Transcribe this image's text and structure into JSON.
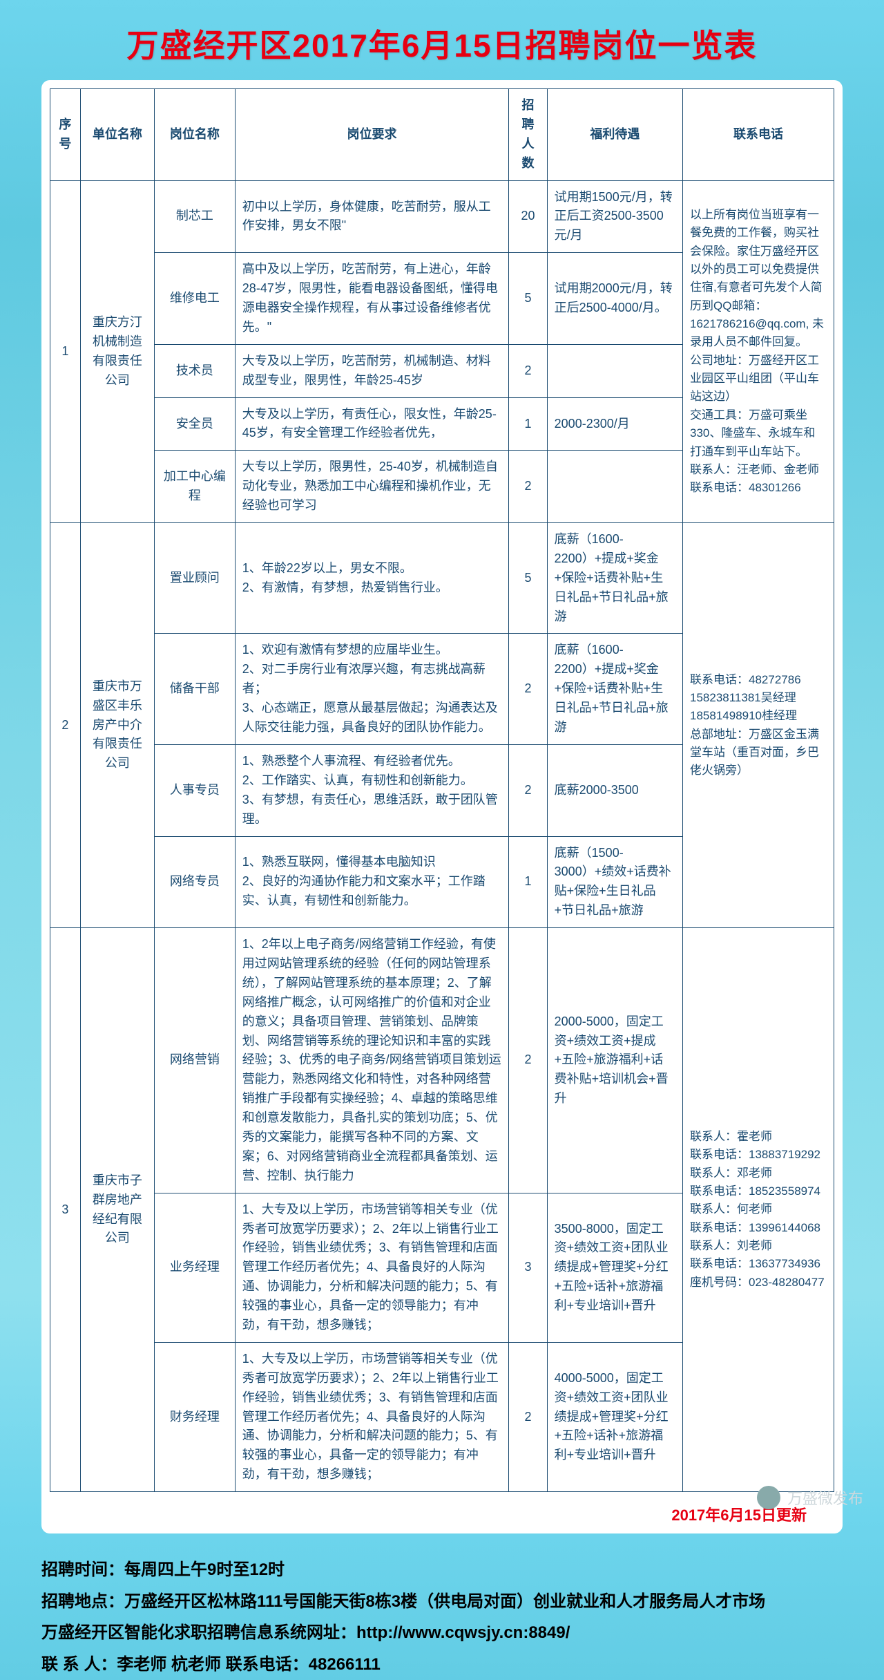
{
  "title": "万盛经开区2017年6月15日招聘岗位一览表",
  "headers": {
    "seq": "序号",
    "company": "单位名称",
    "position": "岗位名称",
    "req": "岗位要求",
    "num": "招聘人数",
    "benefit": "福利待遇",
    "contact": "联系电话"
  },
  "companies": [
    {
      "seq": "1",
      "name": "重庆方汀机械制造有限责任公司",
      "contact": "以上所有岗位当班享有一餐免费的工作餐，购买社会保险。家住万盛经开区以外的员工可以免费提供住宿,有意者可先发个人简历到QQ邮箱：1621786216@qq.com, 未录用人员不邮件回复。\n公司地址：万盛经开区工业园区平山组团（平山车站这边）\n交通工具：万盛可乘坐330、隆盛车、永城车和打通车到平山车站下。\n联系人：汪老师、金老师     联系电话：48301266",
      "positions": [
        {
          "name": "制芯工",
          "req": "初中以上学历，身体健康，吃苦耐劳，服从工作安排，男女不限\"",
          "num": "20",
          "benefit": "试用期1500元/月，转正后工资2500-3500元/月"
        },
        {
          "name": "维修电工",
          "req": "高中及以上学历，吃苦耐劳，有上进心，年龄28-47岁，限男性，能看电器设备图纸，懂得电源电器安全操作规程，有从事过设备维修者优先。\"",
          "num": "5",
          "benefit": "试用期2000元/月，转正后2500-4000/月。"
        },
        {
          "name": "技术员",
          "req": "大专及以上学历，吃苦耐劳，机械制造、材料成型专业，限男性，年龄25-45岁",
          "num": "2",
          "benefit": ""
        },
        {
          "name": "安全员",
          "req": "大专及以上学历，有责任心，限女性，年龄25-45岁，有安全管理工作经验者优先，",
          "num": "1",
          "benefit": "2000-2300/月"
        },
        {
          "name": "加工中心编程",
          "req": "大专以上学历，限男性，25-40岁，机械制造自动化专业，熟悉加工中心编程和操机作业，无经验也可学习",
          "num": "2",
          "benefit": ""
        }
      ]
    },
    {
      "seq": "2",
      "name": "重庆市万盛区丰乐房产中介有限责任公司",
      "contact": "联系电话：48272786\n15823811381吴经理\n18581498910桂经理\n总部地址：万盛区金玉满堂车站（重百对面，乡巴佬火锅旁）",
      "positions": [
        {
          "name": "置业顾问",
          "req": "1、年龄22岁以上，男女不限。\n2、有激情，有梦想，热爱销售行业。",
          "num": "5",
          "benefit": "底薪（1600-2200）+提成+奖金+保险+话费补贴+生日礼品+节日礼品+旅游"
        },
        {
          "name": "储备干部",
          "req": "1、欢迎有激情有梦想的应届毕业生。\n2、对二手房行业有浓厚兴趣，有志挑战高薪者；\n3、心态端正，愿意从最基层做起；沟通表达及人际交往能力强，具备良好的团队协作能力。",
          "num": "2",
          "benefit": "底薪（1600-2200）+提成+奖金+保险+话费补贴+生日礼品+节日礼品+旅游"
        },
        {
          "name": "人事专员",
          "req": "1、熟悉整个人事流程、有经验者优先。\n2、工作踏实、认真，有韧性和创新能力。\n3、有梦想，有责任心，思维活跃，敢于团队管理。",
          "num": "2",
          "benefit": "底薪2000-3500"
        },
        {
          "name": "网络专员",
          "req": "1、熟悉互联网，懂得基本电脑知识\n2、良好的沟通协作能力和文案水平；工作踏实、认真，有韧性和创新能力。",
          "num": "1",
          "benefit": "底薪（1500-3000）+绩效+话费补贴+保险+生日礼品+节日礼品+旅游"
        }
      ]
    },
    {
      "seq": "3",
      "name": "重庆市子群房地产经纪有限公司",
      "contact": "联系人：霍老师\n联系电话：13883719292\n联系人：邓老师\n联系电话：18523558974\n联系人：何老师\n联系电话：13996144068\n联系人：刘老师\n联系电话：13637734936\n座机号码：023-48280477",
      "positions": [
        {
          "name": "网络营销",
          "req": "1、2年以上电子商务/网络营销工作经验，有使用过网站管理系统的经验（任何的网站管理系统），了解网站管理系统的基本原理；2、了解网络推广概念，认可网络推广的价值和对企业的意义；具备项目管理、营销策划、品牌策划、网络营销等系统的理论知识和丰富的实践经验；3、优秀的电子商务/网络营销项目策划运营能力，熟悉网络文化和特性，对各种网络营销推广手段都有实操经验；4、卓越的策略思维和创意发散能力，具备扎实的策划功底；5、优秀的文案能力，能撰写各种不同的方案、文案；6、对网络营销商业全流程都具备策划、运营、控制、执行能力",
          "num": "2",
          "benefit": "2000-5000，固定工资+绩效工资+提成+五险+旅游福利+话费补贴+培训机会+晋升"
        },
        {
          "name": "业务经理",
          "req": "1、大专及以上学历，市场营销等相关专业（优秀者可放宽学历要求）；2、2年以上销售行业工作经验，销售业绩优秀；3、有销售管理和店面管理工作经历者优先；4、具备良好的人际沟通、协调能力，分析和解决问题的能力；5、有较强的事业心，具备一定的领导能力；有冲劲，有干劲，想多赚钱；",
          "num": "3",
          "benefit": "3500-8000，固定工资+绩效工资+团队业绩提成+管理奖+分红+五险+话补+旅游福利+专业培训+晋升"
        },
        {
          "name": "财务经理",
          "req": "1、大专及以上学历，市场营销等相关专业（优秀者可放宽学历要求）；2、2年以上销售行业工作经验，销售业绩优秀；3、有销售管理和店面管理工作经历者优先；4、具备良好的人际沟通、协调能力，分析和解决问题的能力；5、有较强的事业心，具备一定的领导能力；有冲劲，有干劲，想多赚钱；",
          "num": "2",
          "benefit": "4000-5000，固定工资+绩效工资+团队业绩提成+管理奖+分红+五险+话补+旅游福利+专业培训+晋升"
        }
      ]
    }
  ],
  "update": "2017年6月15日更新",
  "footer": {
    "l1": "招聘时间：每周四上午9时至12时",
    "l2": "招聘地点：万盛经开区松林路111号国能天街8栋3楼（供电局对面）创业就业和人才服务局人才市场",
    "l3": "万盛经开区智能化求职招聘信息系统网址：http://www.cqwsjy.cn:8849/",
    "l4": "联 系 人：李老师   杭老师     联系电话：48266111"
  },
  "wechat": "万盛微发布"
}
